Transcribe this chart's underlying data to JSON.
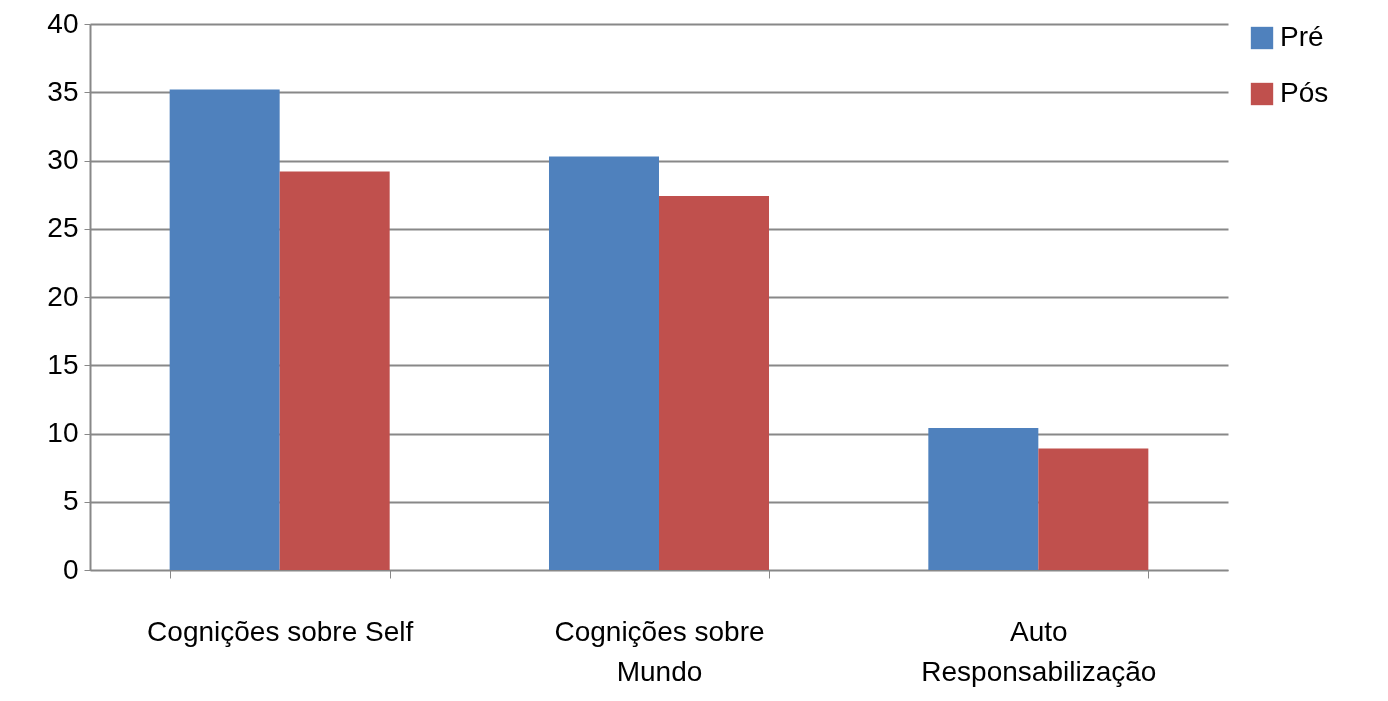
{
  "chart_data": {
    "type": "bar",
    "categories": [
      "Cognições sobre Self",
      "Cognições sobre Mundo",
      "Auto Responsabilização"
    ],
    "series": [
      {
        "name": "Pré",
        "color": "#4f81bd",
        "values": [
          35.2,
          30.3,
          10.4
        ]
      },
      {
        "name": "Pós",
        "color": "#c0504d",
        "values": [
          29.2,
          27.4,
          8.9
        ]
      }
    ],
    "ylim": [
      0,
      40
    ],
    "yticks": [
      0,
      5,
      10,
      15,
      20,
      25,
      30,
      35,
      40
    ],
    "grid": "y",
    "legend": "right"
  }
}
